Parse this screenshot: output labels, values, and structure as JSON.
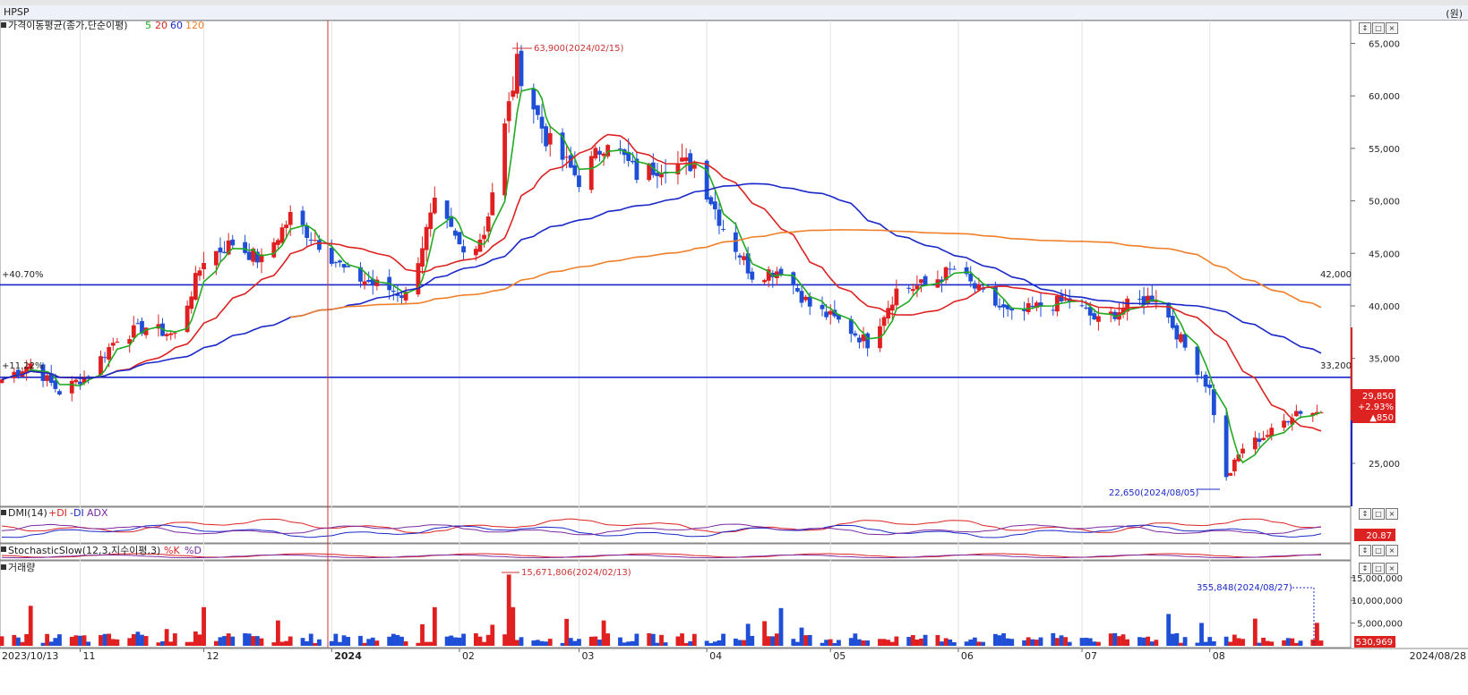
{
  "window": {
    "title": "HPSP",
    "unit": "(원)"
  },
  "price_panel": {
    "legend_title": "가격이동평균(종가,단순이평)",
    "ma_labels": [
      {
        "label": "5",
        "color": "#22aa22"
      },
      {
        "label": "20",
        "color": "#dd2222"
      },
      {
        "label": "60",
        "color": "#1a28c8"
      },
      {
        "label": "120",
        "color": "#f07f2a"
      }
    ],
    "high_annotation": "63,900(2024/02/15)",
    "low_annotation": "22,650(2024/08/05)",
    "line_upper": {
      "value": 42000,
      "label": "42,000",
      "left_label": "+40.70%"
    },
    "line_lower": {
      "value": 33200,
      "label": "33,200",
      "left_label": "+11.22%"
    },
    "current": {
      "price": "29,850",
      "change_pct": "+2.93%",
      "change": "▲850"
    }
  },
  "dmi_panel": {
    "title": "DMI(14)",
    "plus": "+DI",
    "minus": "-DI",
    "adx": "ADX",
    "value_badge": "20.87"
  },
  "stoch_panel": {
    "title": "StochasticSlow(12,3,지수이평,3)",
    "k": "%K",
    "d": "%D"
  },
  "volume_panel": {
    "title": "거래량",
    "high_annotation": "15,671,806(2024/02/13)",
    "last_annotation": "355,848(2024/08/27)",
    "last_badge": "530,969"
  },
  "panel_buttons": [
    "↕",
    "□",
    "×"
  ],
  "x_axis": {
    "start_label": "2023/10/13",
    "end_label": "2024/08/28",
    "ticks": [
      "11",
      "12",
      "2024",
      "02",
      "03",
      "04",
      "05",
      "06",
      "07",
      "08"
    ]
  },
  "chart_data": {
    "type": "candlestick",
    "series_price_key": [
      "date",
      "open",
      "high",
      "low",
      "close"
    ],
    "price_axis": {
      "ticks": [
        25000,
        30000,
        35000,
        40000,
        45000,
        50000,
        55000,
        60000,
        65000
      ],
      "ylim": [
        21000,
        67000
      ]
    },
    "price_tick_labels": [
      "25,000",
      "35,000",
      "40,000",
      "45,000",
      "50,000",
      "55,000",
      "60,000",
      "65,000"
    ],
    "volume_axis": {
      "ticks": [
        5000000,
        10000000,
        15000000
      ],
      "ylim": [
        0,
        18500000
      ]
    },
    "volume_tick_labels": [
      "5,000,000",
      "10,000,000",
      "15,000,000"
    ],
    "price_anchors": [
      [
        "2023-10-13",
        33000
      ],
      [
        "2023-10-20",
        34500
      ],
      [
        "2023-10-27",
        31800
      ],
      [
        "2023-11-03",
        33500
      ],
      [
        "2023-11-10",
        37000
      ],
      [
        "2023-11-17",
        38000
      ],
      [
        "2023-11-24",
        37200
      ],
      [
        "2023-12-01",
        44500
      ],
      [
        "2023-12-08",
        46000
      ],
      [
        "2023-12-15",
        44300
      ],
      [
        "2023-12-22",
        48500
      ],
      [
        "2023-12-29",
        46000
      ],
      [
        "2024-01-05",
        43000
      ],
      [
        "2024-01-12",
        42000
      ],
      [
        "2024-01-19",
        41000
      ],
      [
        "2024-01-26",
        49500
      ],
      [
        "2024-02-02",
        45000
      ],
      [
        "2024-02-07",
        47000
      ],
      [
        "2024-02-15",
        63000
      ],
      [
        "2024-02-22",
        56000
      ],
      [
        "2024-03-01",
        52000
      ],
      [
        "2024-03-08",
        56000
      ],
      [
        "2024-03-15",
        52500
      ],
      [
        "2024-03-22",
        53500
      ],
      [
        "2024-03-29",
        53500
      ],
      [
        "2024-04-05",
        47500
      ],
      [
        "2024-04-12",
        43000
      ],
      [
        "2024-04-19",
        43500
      ],
      [
        "2024-04-26",
        40000
      ],
      [
        "2024-05-03",
        38500
      ],
      [
        "2024-05-10",
        36500
      ],
      [
        "2024-05-17",
        41500
      ],
      [
        "2024-05-24",
        42000
      ],
      [
        "2024-05-31",
        43500
      ],
      [
        "2024-06-07",
        41000
      ],
      [
        "2024-06-14",
        39000
      ],
      [
        "2024-06-21",
        40000
      ],
      [
        "2024-06-28",
        40500
      ],
      [
        "2024-07-05",
        38500
      ],
      [
        "2024-07-12",
        40000
      ],
      [
        "2024-07-19",
        41000
      ],
      [
        "2024-07-26",
        36000
      ],
      [
        "2024-08-01",
        32000
      ],
      [
        "2024-08-05",
        23500
      ],
      [
        "2024-08-09",
        26500
      ],
      [
        "2024-08-16",
        28000
      ],
      [
        "2024-08-22",
        30000
      ],
      [
        "2024-08-28",
        29850
      ]
    ],
    "volume_spikes": [
      [
        "2023-10-20",
        8800000
      ],
      [
        "2023-12-01",
        8500000
      ],
      [
        "2024-01-26",
        8500000
      ],
      [
        "2024-02-13",
        15671806
      ],
      [
        "2024-02-14",
        8500000
      ],
      [
        "2024-04-19",
        8300000
      ],
      [
        "2024-07-22",
        7000000
      ]
    ]
  }
}
